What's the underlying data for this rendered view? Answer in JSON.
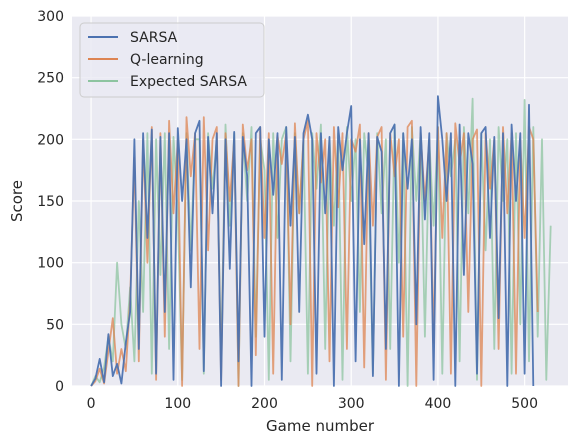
{
  "chart_data": {
    "type": "line",
    "title": "",
    "xlabel": "Game number",
    "ylabel": "Score",
    "xlim": [
      -22,
      550
    ],
    "ylim": [
      0,
      300
    ],
    "x_ticks": [
      0,
      100,
      200,
      300,
      400,
      500
    ],
    "x_tick_labels": [
      "0",
      "100",
      "200",
      "300",
      "400",
      "500"
    ],
    "y_ticks": [
      0,
      50,
      100,
      150,
      200,
      250,
      300
    ],
    "y_tick_labels": [
      "0",
      "50",
      "100",
      "150",
      "200",
      "250",
      "300"
    ],
    "grid": true,
    "legend_position": "top-left",
    "series": [
      {
        "name": "SARSA",
        "color": "#4c72b0",
        "x": [
          0,
          5,
          10,
          15,
          20,
          25,
          30,
          35,
          40,
          45,
          50,
          55,
          60,
          65,
          70,
          75,
          80,
          85,
          90,
          95,
          100,
          105,
          110,
          115,
          120,
          125,
          130,
          135,
          140,
          145,
          150,
          155,
          160,
          165,
          170,
          175,
          180,
          185,
          190,
          195,
          200,
          205,
          210,
          215,
          220,
          225,
          230,
          235,
          240,
          245,
          250,
          255,
          260,
          265,
          270,
          275,
          280,
          285,
          290,
          295,
          300,
          305,
          310,
          315,
          320,
          325,
          330,
          335,
          340,
          345,
          350,
          355,
          360,
          365,
          370,
          375,
          380,
          385,
          390,
          395,
          400,
          405,
          410,
          415,
          420,
          425,
          430,
          435,
          440,
          445,
          450,
          455,
          460,
          465,
          470,
          475,
          480,
          485,
          490,
          495,
          500,
          505,
          510
        ],
        "y": [
          0,
          6,
          22,
          3,
          42,
          8,
          18,
          2,
          35,
          60,
          200,
          30,
          205,
          120,
          208,
          10,
          202,
          60,
          205,
          5,
          209,
          150,
          200,
          80,
          205,
          215,
          12,
          202,
          140,
          205,
          0,
          200,
          95,
          206,
          20,
          202,
          170,
          0,
          205,
          210,
          40,
          200,
          155,
          205,
          5,
          210,
          130,
          202,
          60,
          205,
          220,
          200,
          10,
          205,
          140,
          202,
          0,
          210,
          175,
          205,
          227,
          20,
          200,
          115,
          205,
          8,
          202,
          190,
          30,
          205,
          212,
          0,
          205,
          160,
          200,
          50,
          210,
          135,
          205,
          5,
          235,
          200,
          150,
          205,
          0,
          212,
          90,
          205,
          180,
          10,
          205,
          210,
          120,
          202,
          55,
          205,
          0,
          212,
          150,
          205,
          10,
          228,
          0
        ]
      },
      {
        "name": "Q-learning",
        "color": "#dd8452",
        "x": [
          0,
          5,
          10,
          15,
          20,
          25,
          30,
          35,
          40,
          45,
          50,
          55,
          60,
          65,
          70,
          75,
          80,
          85,
          90,
          95,
          100,
          105,
          110,
          115,
          120,
          125,
          130,
          135,
          140,
          145,
          150,
          155,
          160,
          165,
          170,
          175,
          180,
          185,
          190,
          195,
          200,
          205,
          210,
          215,
          220,
          225,
          230,
          235,
          240,
          245,
          250,
          255,
          260,
          265,
          270,
          275,
          280,
          285,
          290,
          295,
          300,
          305,
          310,
          315,
          320,
          325,
          330,
          335,
          340,
          345,
          350,
          355,
          360,
          365,
          370,
          375,
          380,
          385,
          390,
          395,
          400,
          405,
          410,
          415,
          420,
          425,
          430,
          435,
          440,
          445,
          450,
          455,
          460,
          465,
          470,
          475,
          480,
          485,
          490,
          495,
          500,
          505,
          510,
          515
        ],
        "y": [
          0,
          4,
          14,
          2,
          28,
          55,
          10,
          30,
          12,
          70,
          185,
          20,
          200,
          100,
          210,
          5,
          205,
          40,
          215,
          140,
          200,
          0,
          218,
          170,
          205,
          30,
          218,
          110,
          200,
          210,
          5,
          205,
          150,
          200,
          0,
          212,
          175,
          200,
          25,
          210,
          120,
          205,
          10,
          203,
          180,
          205,
          50,
          213,
          140,
          200,
          215,
          0,
          205,
          165,
          200,
          20,
          210,
          145,
          205,
          30,
          200,
          190,
          212,
          15,
          205,
          130,
          202,
          210,
          5,
          205,
          170,
          200,
          40,
          210,
          215,
          0,
          205,
          150,
          200,
          35,
          210,
          120,
          205,
          10,
          213,
          180,
          205,
          60,
          200,
          208,
          0,
          205,
          160,
          200,
          30,
          210,
          140,
          205,
          10,
          200,
          120,
          210,
          200,
          60
        ]
      },
      {
        "name": "Expected SARSA",
        "color": "#8dc4a0",
        "x": [
          0,
          5,
          10,
          15,
          20,
          25,
          30,
          35,
          40,
          45,
          50,
          55,
          60,
          65,
          70,
          75,
          80,
          85,
          90,
          95,
          100,
          105,
          110,
          115,
          120,
          125,
          130,
          135,
          140,
          145,
          150,
          155,
          160,
          165,
          170,
          175,
          180,
          185,
          190,
          195,
          200,
          205,
          210,
          215,
          220,
          225,
          230,
          235,
          240,
          245,
          250,
          255,
          260,
          265,
          270,
          275,
          280,
          285,
          290,
          295,
          300,
          305,
          310,
          315,
          320,
          325,
          330,
          335,
          340,
          345,
          350,
          355,
          360,
          365,
          370,
          375,
          380,
          385,
          390,
          395,
          400,
          405,
          410,
          415,
          420,
          425,
          430,
          435,
          440,
          445,
          450,
          455,
          460,
          465,
          470,
          475,
          480,
          485,
          490,
          495,
          500,
          505,
          510,
          515,
          520,
          525,
          530
        ],
        "y": [
          0,
          8,
          3,
          15,
          40,
          20,
          100,
          50,
          30,
          80,
          20,
          150,
          60,
          205,
          10,
          200,
          90,
          205,
          30,
          202,
          140,
          5,
          205,
          110,
          200,
          200,
          10,
          205,
          160,
          200,
          20,
          212,
          130,
          205,
          0,
          205,
          150,
          210,
          40,
          200,
          175,
          5,
          205,
          120,
          200,
          210,
          20,
          205,
          140,
          200,
          10,
          205,
          160,
          212,
          30,
          200,
          130,
          205,
          5,
          210,
          150,
          200,
          60,
          205,
          170,
          10,
          205,
          140,
          200,
          30,
          212,
          100,
          205,
          0,
          210,
          150,
          205,
          40,
          200,
          130,
          210,
          10,
          205,
          170,
          200,
          20,
          210,
          140,
          233,
          5,
          205,
          110,
          200,
          30,
          210,
          150,
          200,
          10,
          205,
          50,
          232,
          20,
          210,
          40,
          200,
          5,
          130
        ]
      }
    ]
  }
}
